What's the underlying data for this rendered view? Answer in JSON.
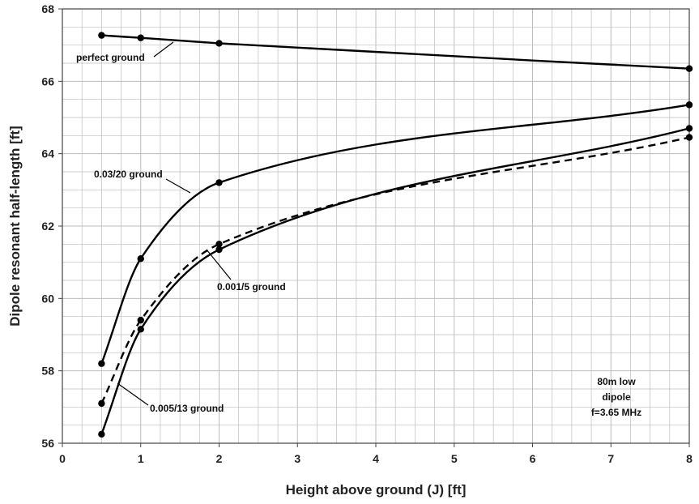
{
  "chart_data": {
    "type": "line",
    "xlabel": "Height above ground (J) [ft]",
    "ylabel": "Dipole resonant half-length [ft]",
    "xlim": [
      0,
      8
    ],
    "ylim": [
      56,
      68
    ],
    "x_ticks": [
      "0",
      "1",
      "2",
      "3",
      "4",
      "5",
      "6",
      "7",
      "8"
    ],
    "y_ticks": [
      "56",
      "58",
      "60",
      "62",
      "64",
      "66",
      "68"
    ],
    "grid": true,
    "series": [
      {
        "name": "perfect ground",
        "style": "solid",
        "x": [
          0.5,
          1,
          2,
          8
        ],
        "y": [
          67.27,
          67.2,
          67.05,
          66.35
        ]
      },
      {
        "name": "0.03/20 ground",
        "style": "solid",
        "x": [
          0.5,
          1,
          2,
          8
        ],
        "y": [
          58.2,
          61.1,
          63.2,
          65.35
        ]
      },
      {
        "name": "0.001/5 ground",
        "style": "solid",
        "x": [
          0.5,
          1,
          2,
          8
        ],
        "y": [
          56.25,
          59.15,
          61.35,
          64.7
        ]
      },
      {
        "name": "0.005/13 ground",
        "style": "dashed",
        "x": [
          0.5,
          1,
          2,
          8
        ],
        "y": [
          57.1,
          59.4,
          61.5,
          64.45
        ]
      }
    ],
    "annotations": [
      "perfect ground",
      "0.03/20 ground",
      "0.001/5 ground",
      "0.005/13 ground",
      "80m low",
      "dipole",
      "f=3.65 MHz"
    ],
    "colors": {
      "line": "#000000",
      "grid": "#bdbdbd",
      "axis": "#444444"
    }
  }
}
